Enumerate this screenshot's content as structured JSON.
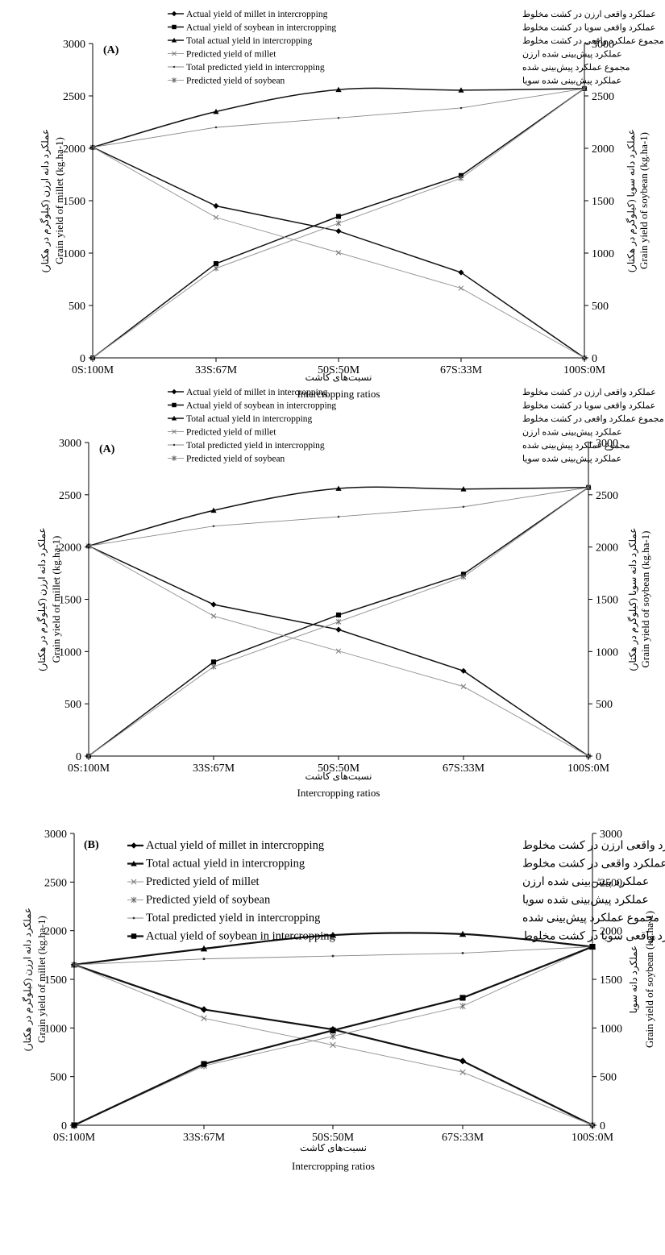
{
  "chart_data": [
    {
      "type": "line",
      "panel_label": "(A)",
      "categories": [
        "0S:100M",
        "33S:67M",
        "50S:50M",
        "67S:33M",
        "100S:0M"
      ],
      "xlabel": "Intercropping ratios",
      "xlabel_fa": "نسبت‌های کاشت",
      "ylabel_left": "Grain yield of millet (kg.ha-1)",
      "ylabel_left_fa": "عملکرد دانه ارزن (کیلوگرم در هکتار)",
      "ylabel_right": "Grain yield of soybean (kg.ha-1)",
      "ylabel_right_fa": "عملکرد دانه سویا (کیلوگرم در هکتار)",
      "ylim": [
        0,
        3000
      ],
      "yticks": [
        0,
        500,
        1000,
        1500,
        2000,
        2500,
        3000
      ],
      "legend_position": "top",
      "series": [
        {
          "name": "Actual yield of millet in intercropping",
          "name_fa": "عملکرد واقعی ارزن در کشت مخلوط",
          "marker": "diamond",
          "values": [
            2010,
            1450,
            1210,
            815,
            0
          ]
        },
        {
          "name": "Actual yield of soybean in intercropping",
          "name_fa": "عملکرد واقعی سویا در کشت مخلوط",
          "marker": "square",
          "values": [
            0,
            900,
            1350,
            1740,
            2570
          ]
        },
        {
          "name": "Total actual yield  in intercropping",
          "name_fa": "مجموع عملکرد واقعی در کشت مخلوط",
          "marker": "triangle",
          "values": [
            2010,
            2350,
            2560,
            2555,
            2570
          ]
        },
        {
          "name": "Predicted yield of millet",
          "name_fa": "عملکرد پیش‌بینی شده ارزن",
          "marker": "x",
          "values": [
            2010,
            1340,
            1005,
            665,
            0
          ]
        },
        {
          "name": "Total predicted yield  in intercropping",
          "name_fa": "مجموع عملکرد پیش‌بینی شده",
          "marker": "dot",
          "values": [
            2010,
            2200,
            2290,
            2385,
            2570
          ]
        },
        {
          "name": "Predicted yield of soybean",
          "name_fa": "عملکرد پیش‌بینی شده سویا",
          "marker": "star",
          "values": [
            0,
            855,
            1285,
            1715,
            2570
          ]
        }
      ]
    },
    {
      "type": "line",
      "panel_label": "(A)",
      "categories": [
        "0S:100M",
        "33S:67M",
        "50S:50M",
        "67S:33M",
        "100S:0M"
      ],
      "xlabel": "Intercropping ratios",
      "xlabel_fa": "نسبت‌های کاشت",
      "ylabel_left": "Grain yield of millet (kg.ha-1)",
      "ylabel_left_fa": "عملکرد دانه ارزن (کیلوگرم در هکتار)",
      "ylabel_right": "Grain yield of soybean (kg.ha-1)",
      "ylabel_right_fa": "عملکرد دانه سویا (کیلوگرم در هکتار)",
      "ylim": [
        0,
        3000
      ],
      "yticks": [
        0,
        500,
        1000,
        1500,
        2000,
        2500,
        3000
      ],
      "legend_position": "top",
      "series": [
        {
          "name": "Actual yield of millet in intercropping",
          "name_fa": "عملکرد واقعی ارزن در کشت مخلوط",
          "marker": "diamond",
          "values": [
            2010,
            1450,
            1210,
            815,
            0
          ]
        },
        {
          "name": "Actual yield of soybean in intercropping",
          "name_fa": "عملکرد واقعی سویا در کشت مخلوط",
          "marker": "square",
          "values": [
            0,
            900,
            1350,
            1740,
            2570
          ]
        },
        {
          "name": "Total actual yield  in intercropping",
          "name_fa": "مجموع عملکرد واقعی در کشت مخلوط",
          "marker": "triangle",
          "values": [
            2010,
            2350,
            2560,
            2555,
            2570
          ]
        },
        {
          "name": "Predicted yield of millet",
          "name_fa": "عملکرد پیش‌بینی شده ارزن",
          "marker": "x",
          "values": [
            2010,
            1340,
            1005,
            665,
            0
          ]
        },
        {
          "name": "Total predicted yield  in intercropping",
          "name_fa": "مجموع عملکرد پیش‌بینی شده",
          "marker": "dot",
          "values": [
            2010,
            2200,
            2290,
            2385,
            2570
          ]
        },
        {
          "name": "Predicted yield of soybean",
          "name_fa": "عملکرد پیش‌بینی شده سویا",
          "marker": "star",
          "values": [
            0,
            855,
            1285,
            1715,
            2570
          ]
        }
      ]
    },
    {
      "type": "line",
      "panel_label": "(B)",
      "categories": [
        "0S:100M",
        "33S:67M",
        "50S:50M",
        "67S:33M",
        "100S:0M"
      ],
      "xlabel": "Intercropping ratios",
      "xlabel_fa": "نسبت‌های کاشت",
      "ylabel_left": "Grain yield of millet (kg.ha-1)",
      "ylabel_left_fa": "عملکرد دانه ارزن (کیلوگرم در هکتار)",
      "ylabel_right": "Grain yield of soybean (kg.ha-1)",
      "ylabel_right_fa": "عملکرد دانه سویا",
      "ylim": [
        0,
        3000
      ],
      "yticks": [
        0,
        500,
        1000,
        1500,
        2000,
        2500,
        3000
      ],
      "legend_position": "top",
      "series": [
        {
          "name": "Actual yield of millet in intercropping",
          "name_fa": "عملکرد واقعی ارزن در کشت مخلوط",
          "marker": "diamond",
          "values": [
            1650,
            1190,
            985,
            660,
            0
          ]
        },
        {
          "name": "Total actual yield  in intercropping",
          "name_fa": "مجموع عملکرد واقعی در کشت مخلوط",
          "marker": "triangle",
          "values": [
            1650,
            1815,
            1955,
            1965,
            1835
          ]
        },
        {
          "name": "Predicted yield of millet",
          "name_fa": "عملکرد پیش‌بینی شده ارزن",
          "marker": "x",
          "values": [
            1650,
            1100,
            825,
            545,
            0
          ]
        },
        {
          "name": "Predicted yield of soybean",
          "name_fa": "عملکرد پیش‌بینی شده سویا",
          "marker": "star",
          "values": [
            0,
            610,
            915,
            1225,
            1835
          ]
        },
        {
          "name": "Total predicted yield  in intercropping",
          "name_fa": "مجموع عملکرد پیش‌بینی شده",
          "marker": "dot",
          "values": [
            1650,
            1710,
            1740,
            1770,
            1835
          ]
        },
        {
          "name": "Actual yield of soybean in intercropping",
          "name_fa": "عملکرد واقعی سویا در کشت مخلوط",
          "marker": "square",
          "values": [
            0,
            630,
            975,
            1310,
            1835
          ]
        }
      ]
    }
  ]
}
